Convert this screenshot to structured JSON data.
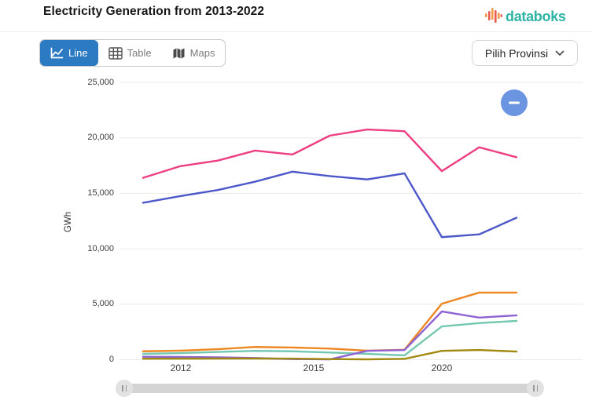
{
  "header": {
    "title": "Electricity Generation from 2013-2022",
    "brand": "databoks"
  },
  "toolbar": {
    "views": [
      {
        "label": "Line",
        "active": true
      },
      {
        "label": "Table",
        "active": false
      },
      {
        "label": "Maps",
        "active": false
      }
    ],
    "province_selector": {
      "label": "Pilih Provinsi"
    }
  },
  "colors": {
    "accent_blue": "#2c7bc2",
    "brand_teal": "#2eb3a4",
    "logo_orange": "#f2994a",
    "logo_red": "#eb5b4e",
    "zoom_button_blue": "#6b94e1",
    "gridline": "#e9e9e9"
  },
  "chart_data": {
    "type": "line",
    "title": "Electricity Generation from 2013-2022",
    "xlabel": "",
    "ylabel": "GWh",
    "ylim": [
      0,
      25000
    ],
    "grid": "horizontal",
    "legend": "none",
    "yticks": [
      0,
      5000,
      10000,
      15000,
      20000,
      25000
    ],
    "ytick_labels": [
      "0",
      "5,000",
      "10,000",
      "15,000",
      "20,000",
      "25,000"
    ],
    "xtick_labels": [
      "2012",
      "2015",
      "2020"
    ],
    "x": [
      2012,
      2013,
      2014,
      2015,
      2016,
      2017,
      2018,
      2019,
      2020,
      2021,
      2022
    ],
    "series": [
      {
        "name": "series-pink",
        "color": "#ee3e83",
        "values": [
          16400,
          17450,
          17950,
          18850,
          18500,
          20200,
          20750,
          20600,
          17000,
          19150,
          18250
        ]
      },
      {
        "name": "series-blue",
        "color": "#4c58c9",
        "values": [
          14150,
          14750,
          15300,
          16050,
          16950,
          16550,
          16250,
          16800,
          11050,
          11300,
          12800
        ]
      },
      {
        "name": "series-orange",
        "color": "#ee8621",
        "values": [
          760,
          820,
          950,
          1150,
          1100,
          1000,
          820,
          900,
          5050,
          6050,
          6050
        ]
      },
      {
        "name": "series-teal",
        "color": "#74c8b0",
        "values": [
          530,
          600,
          700,
          800,
          760,
          650,
          530,
          390,
          3000,
          3300,
          3500
        ]
      },
      {
        "name": "series-purple",
        "color": "#8f63d2",
        "values": [
          270,
          250,
          220,
          150,
          60,
          30,
          800,
          870,
          4350,
          3800,
          4000
        ]
      },
      {
        "name": "series-olive",
        "color": "#a1880f",
        "values": [
          90,
          100,
          110,
          110,
          100,
          60,
          35,
          80,
          800,
          880,
          740
        ]
      }
    ]
  }
}
